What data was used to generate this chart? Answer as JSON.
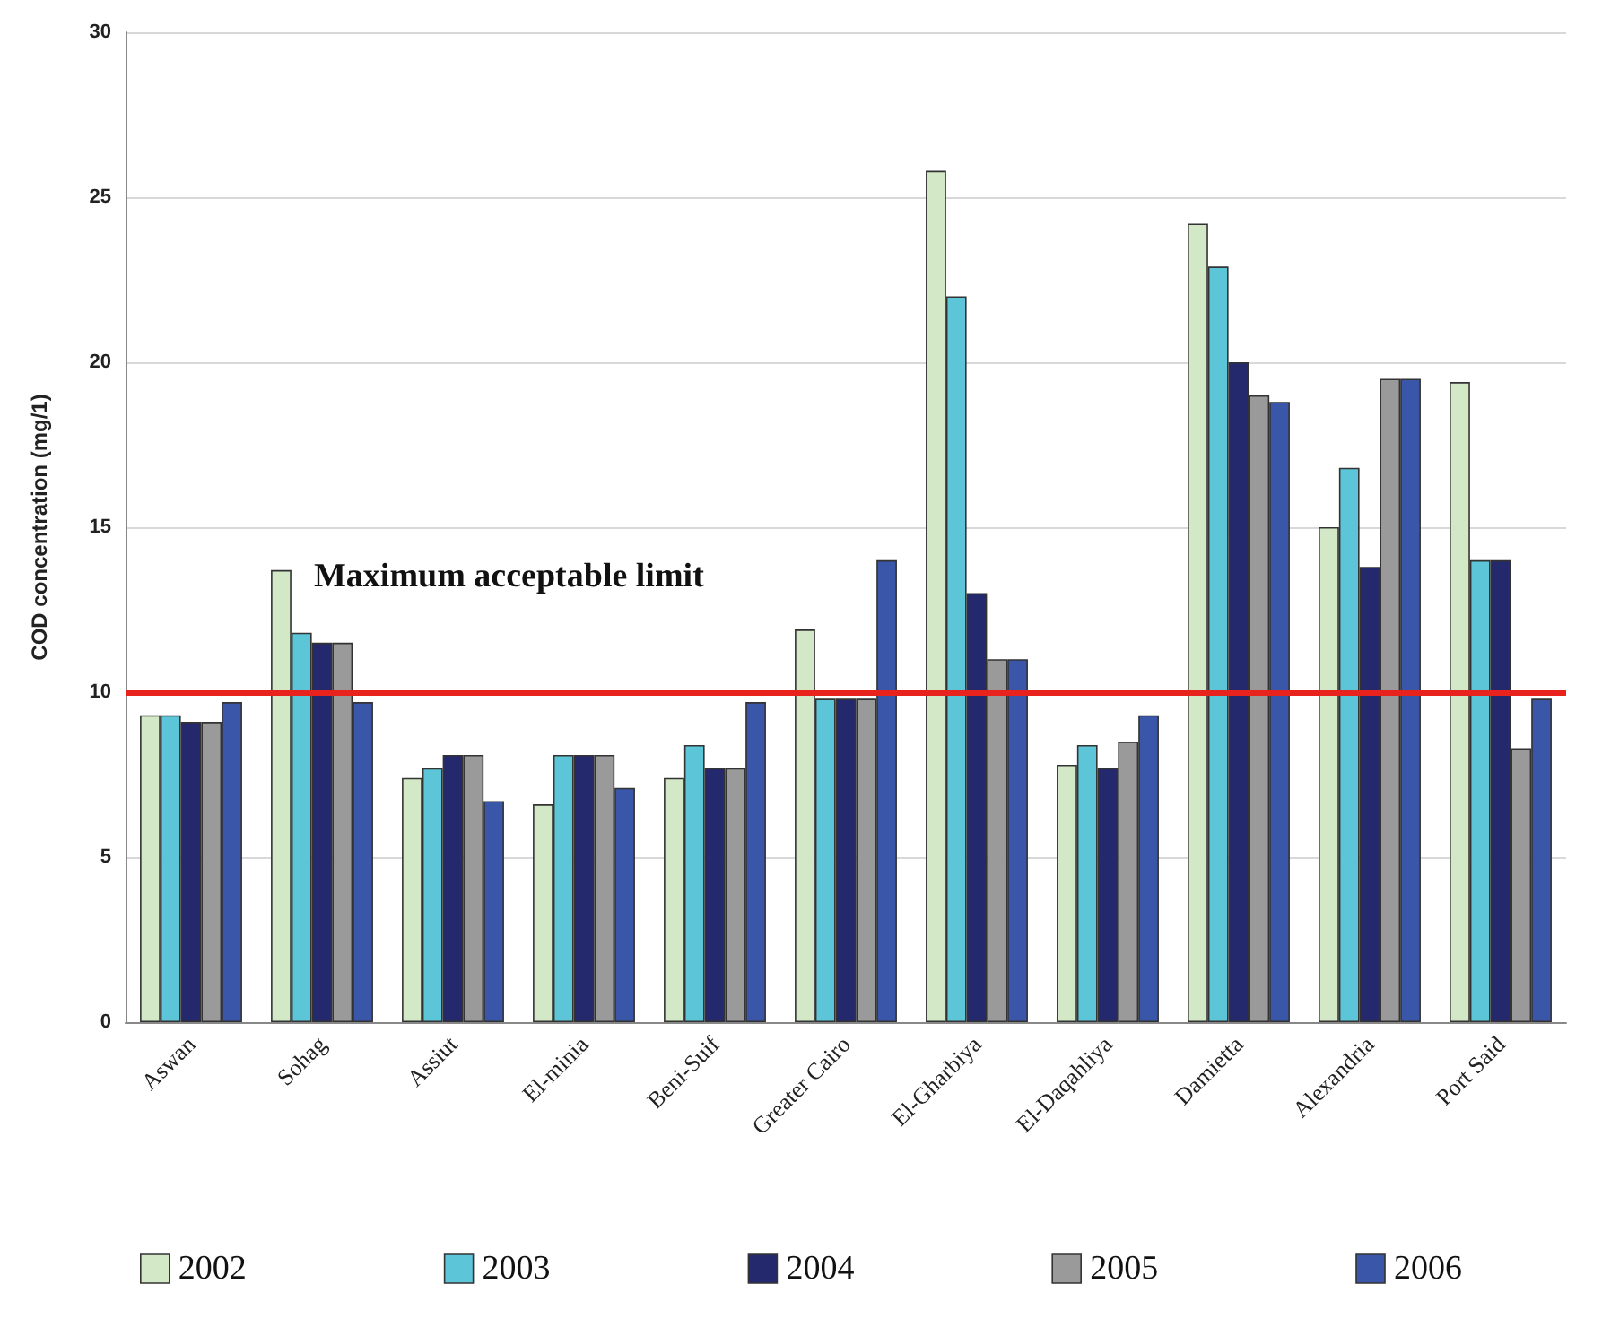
{
  "chart_data": {
    "type": "bar",
    "ylabel": "COD concentration (mg/1)",
    "categories": [
      "Aswan",
      "Sohag",
      "Assiut",
      "El-minia",
      "Beni-Suif",
      "Greater Cairo",
      "El-Gharbiya",
      "El-Daqahliya",
      "Damietta",
      "Alexandria",
      "Port Said"
    ],
    "series": [
      {
        "name": "2002",
        "color": "#d2e8c6",
        "values": [
          9.3,
          13.7,
          7.4,
          6.6,
          7.4,
          11.9,
          25.8,
          7.8,
          24.2,
          15.0,
          19.4
        ]
      },
      {
        "name": "2003",
        "color": "#5cc6d8",
        "values": [
          9.3,
          11.8,
          7.7,
          8.1,
          8.4,
          9.8,
          22.0,
          8.4,
          22.9,
          16.8,
          14.0
        ]
      },
      {
        "name": "2004",
        "color": "#24296e",
        "values": [
          9.1,
          11.5,
          8.1,
          8.1,
          7.7,
          9.8,
          13.0,
          7.7,
          20.0,
          13.8,
          14.0
        ]
      },
      {
        "name": "2005",
        "color": "#9a9a9a",
        "values": [
          9.1,
          11.5,
          8.1,
          8.1,
          7.7,
          9.8,
          11.0,
          8.5,
          19.0,
          19.5,
          8.3
        ]
      },
      {
        "name": "2006",
        "color": "#3a56a8",
        "values": [
          9.7,
          9.7,
          6.7,
          7.1,
          9.7,
          14.0,
          11.0,
          9.3,
          18.8,
          19.5,
          9.8
        ]
      }
    ],
    "ylim": [
      0,
      30
    ],
    "yticks": [
      0,
      5,
      10,
      15,
      20,
      25,
      30
    ],
    "ref_lines": [
      {
        "axis": "y",
        "value": 10,
        "label": "Maximum acceptable limit",
        "color": "#e8231e"
      }
    ],
    "grid": "y",
    "legend": "bottom"
  }
}
